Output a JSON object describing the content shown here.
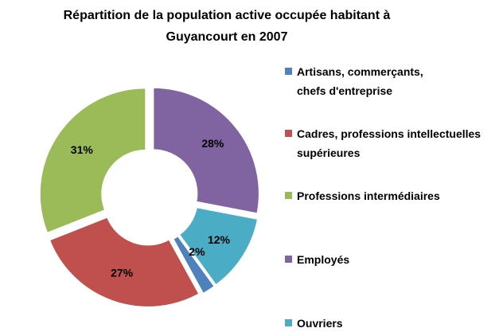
{
  "chart_data": {
    "type": "pie",
    "title": "Répartition de la population active occupée habitant à Guyancourt en 2007",
    "categories": [
      "Artisans, commerçants, chefs d'entreprise",
      "Cadres, professions intellectuelles supérieures",
      "Professions intermédiaires",
      "Employés",
      "Ouvriers"
    ],
    "values": [
      2,
      27,
      31,
      28,
      12
    ],
    "value_labels": [
      "2%",
      "27%",
      "31%",
      "28%",
      "12%"
    ],
    "colors": [
      "#4f81bd",
      "#c0504d",
      "#9bbb59",
      "#8064a2",
      "#4bacc6"
    ],
    "legend": "right"
  }
}
